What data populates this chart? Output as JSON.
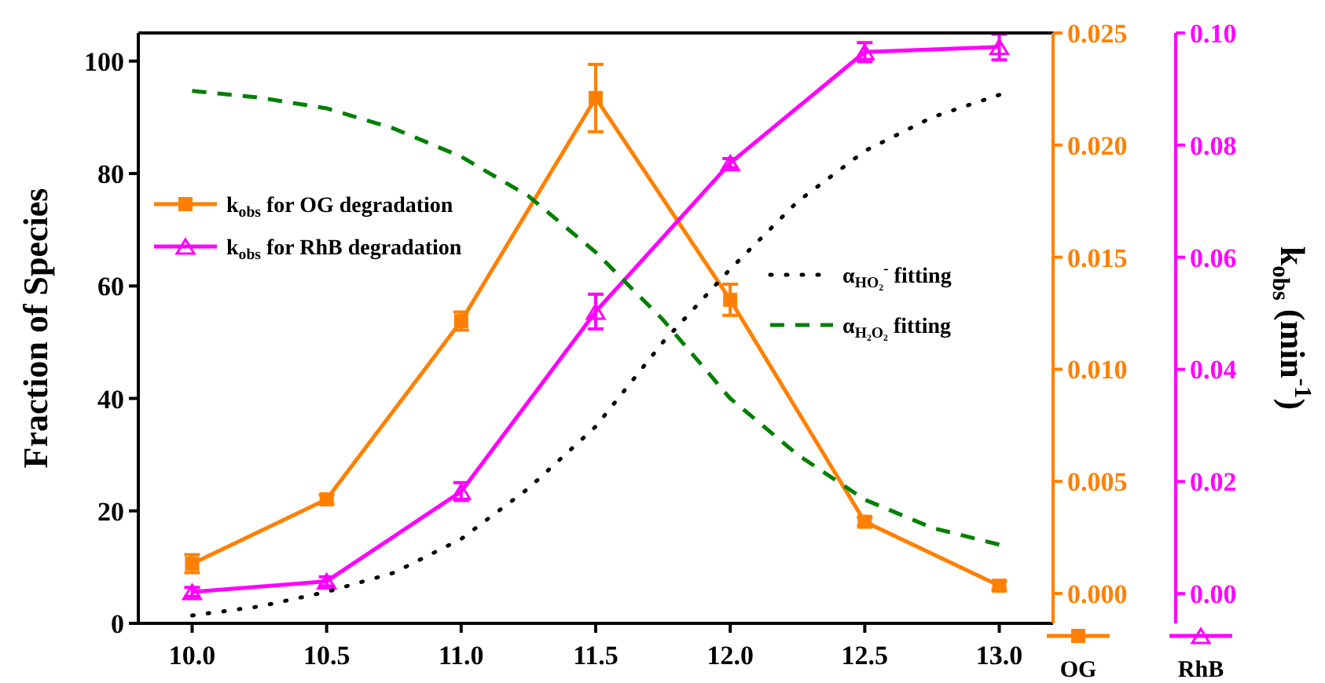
{
  "chart_data": {
    "type": "line",
    "ylabel": "Fraction of Species",
    "y2label": "k$_{obs}$ (min$^{-1}$)",
    "x": [
      10.0,
      10.5,
      11.0,
      11.5,
      12.0,
      12.5,
      13.0
    ],
    "xlim": [
      9.8,
      13.2
    ],
    "xticks": [
      {
        "value": 10,
        "label": "10.0"
      },
      {
        "value": 10.5,
        "label": "10.5"
      },
      {
        "value": 11,
        "label": "11.0"
      },
      {
        "value": 11.5,
        "label": "11.5"
      },
      {
        "value": 12,
        "label": "12.0"
      },
      {
        "value": 12.5,
        "label": "12.5"
      },
      {
        "value": 13,
        "label": "13.0"
      }
    ],
    "ylim": [
      0,
      105
    ],
    "yticks": [
      0,
      20,
      40,
      60,
      80,
      100
    ],
    "y2lim": [
      -0.00133,
      0.025
    ],
    "y2ticks": [
      {
        "value": 0,
        "label": "0.000"
      },
      {
        "value": 0.005,
        "label": "0.005"
      },
      {
        "value": 0.01,
        "label": "0.010"
      },
      {
        "value": 0.015,
        "label": "0.015"
      },
      {
        "value": 0.02,
        "label": "0.020"
      },
      {
        "value": 0.025,
        "label": "0.025"
      }
    ],
    "y3lim": [
      -0.0053,
      0.1
    ],
    "y3ticks": [
      {
        "value": 0,
        "label": "0.00"
      },
      {
        "value": 0.02,
        "label": "0.02"
      },
      {
        "value": 0.04,
        "label": "0.04"
      },
      {
        "value": 0.06,
        "label": "0.06"
      },
      {
        "value": 0.08,
        "label": "0.08"
      },
      {
        "value": 0.1,
        "label": "0.10"
      }
    ],
    "legend": "left",
    "annotations": [
      "OG",
      "RhB"
    ],
    "series": [
      {
        "name": "k$_{obs}$ for OG degradation",
        "color": "#ff8000",
        "axis": "y2",
        "marker": "square",
        "line_style": "solid",
        "values": [
          0.00133,
          0.0042,
          0.01215,
          0.0221,
          0.0131,
          0.0032,
          0.00035
        ],
        "errors": [
          0.0004,
          0.0002,
          0.0004,
          0.0015,
          0.0007,
          0.0002,
          0.0002
        ]
      },
      {
        "name": "k$_{obs}$ for RhB degradation",
        "color": "#ff00ff",
        "axis": "y3",
        "marker": "triangle",
        "line_style": "solid",
        "values": [
          0.0003,
          0.0022,
          0.0182,
          0.0503,
          0.0768,
          0.0966,
          0.0975
        ],
        "errors": [
          0.0008,
          0.0008,
          0.0016,
          0.0031,
          0.0008,
          0.0017,
          0.0023
        ]
      },
      {
        "name": "α$_{HO₂}$$^{-}$ fitting",
        "color": "#000000",
        "marker": "none",
        "line_style": "dotted",
        "x": [
          10.0,
          10.25,
          10.5,
          10.75,
          11.0,
          11.25,
          11.5,
          11.75,
          12.0,
          12.25,
          12.5,
          12.75,
          13.0
        ],
        "values": [
          1.4,
          3,
          5.6,
          9,
          15,
          24,
          35,
          50,
          63,
          75,
          84,
          90,
          94
        ]
      },
      {
        "name": "α$_{H₂O₂}$ fitting",
        "color": "#007f00",
        "marker": "none",
        "line_style": "dashed",
        "x": [
          10.0,
          10.25,
          10.5,
          10.75,
          11.0,
          11.25,
          11.5,
          11.75,
          12.0,
          12.25,
          12.5,
          12.75,
          13.0
        ],
        "values": [
          94.7,
          93.5,
          91.6,
          88,
          83,
          76,
          66,
          54,
          40,
          30,
          22,
          17,
          14
        ]
      }
    ]
  }
}
